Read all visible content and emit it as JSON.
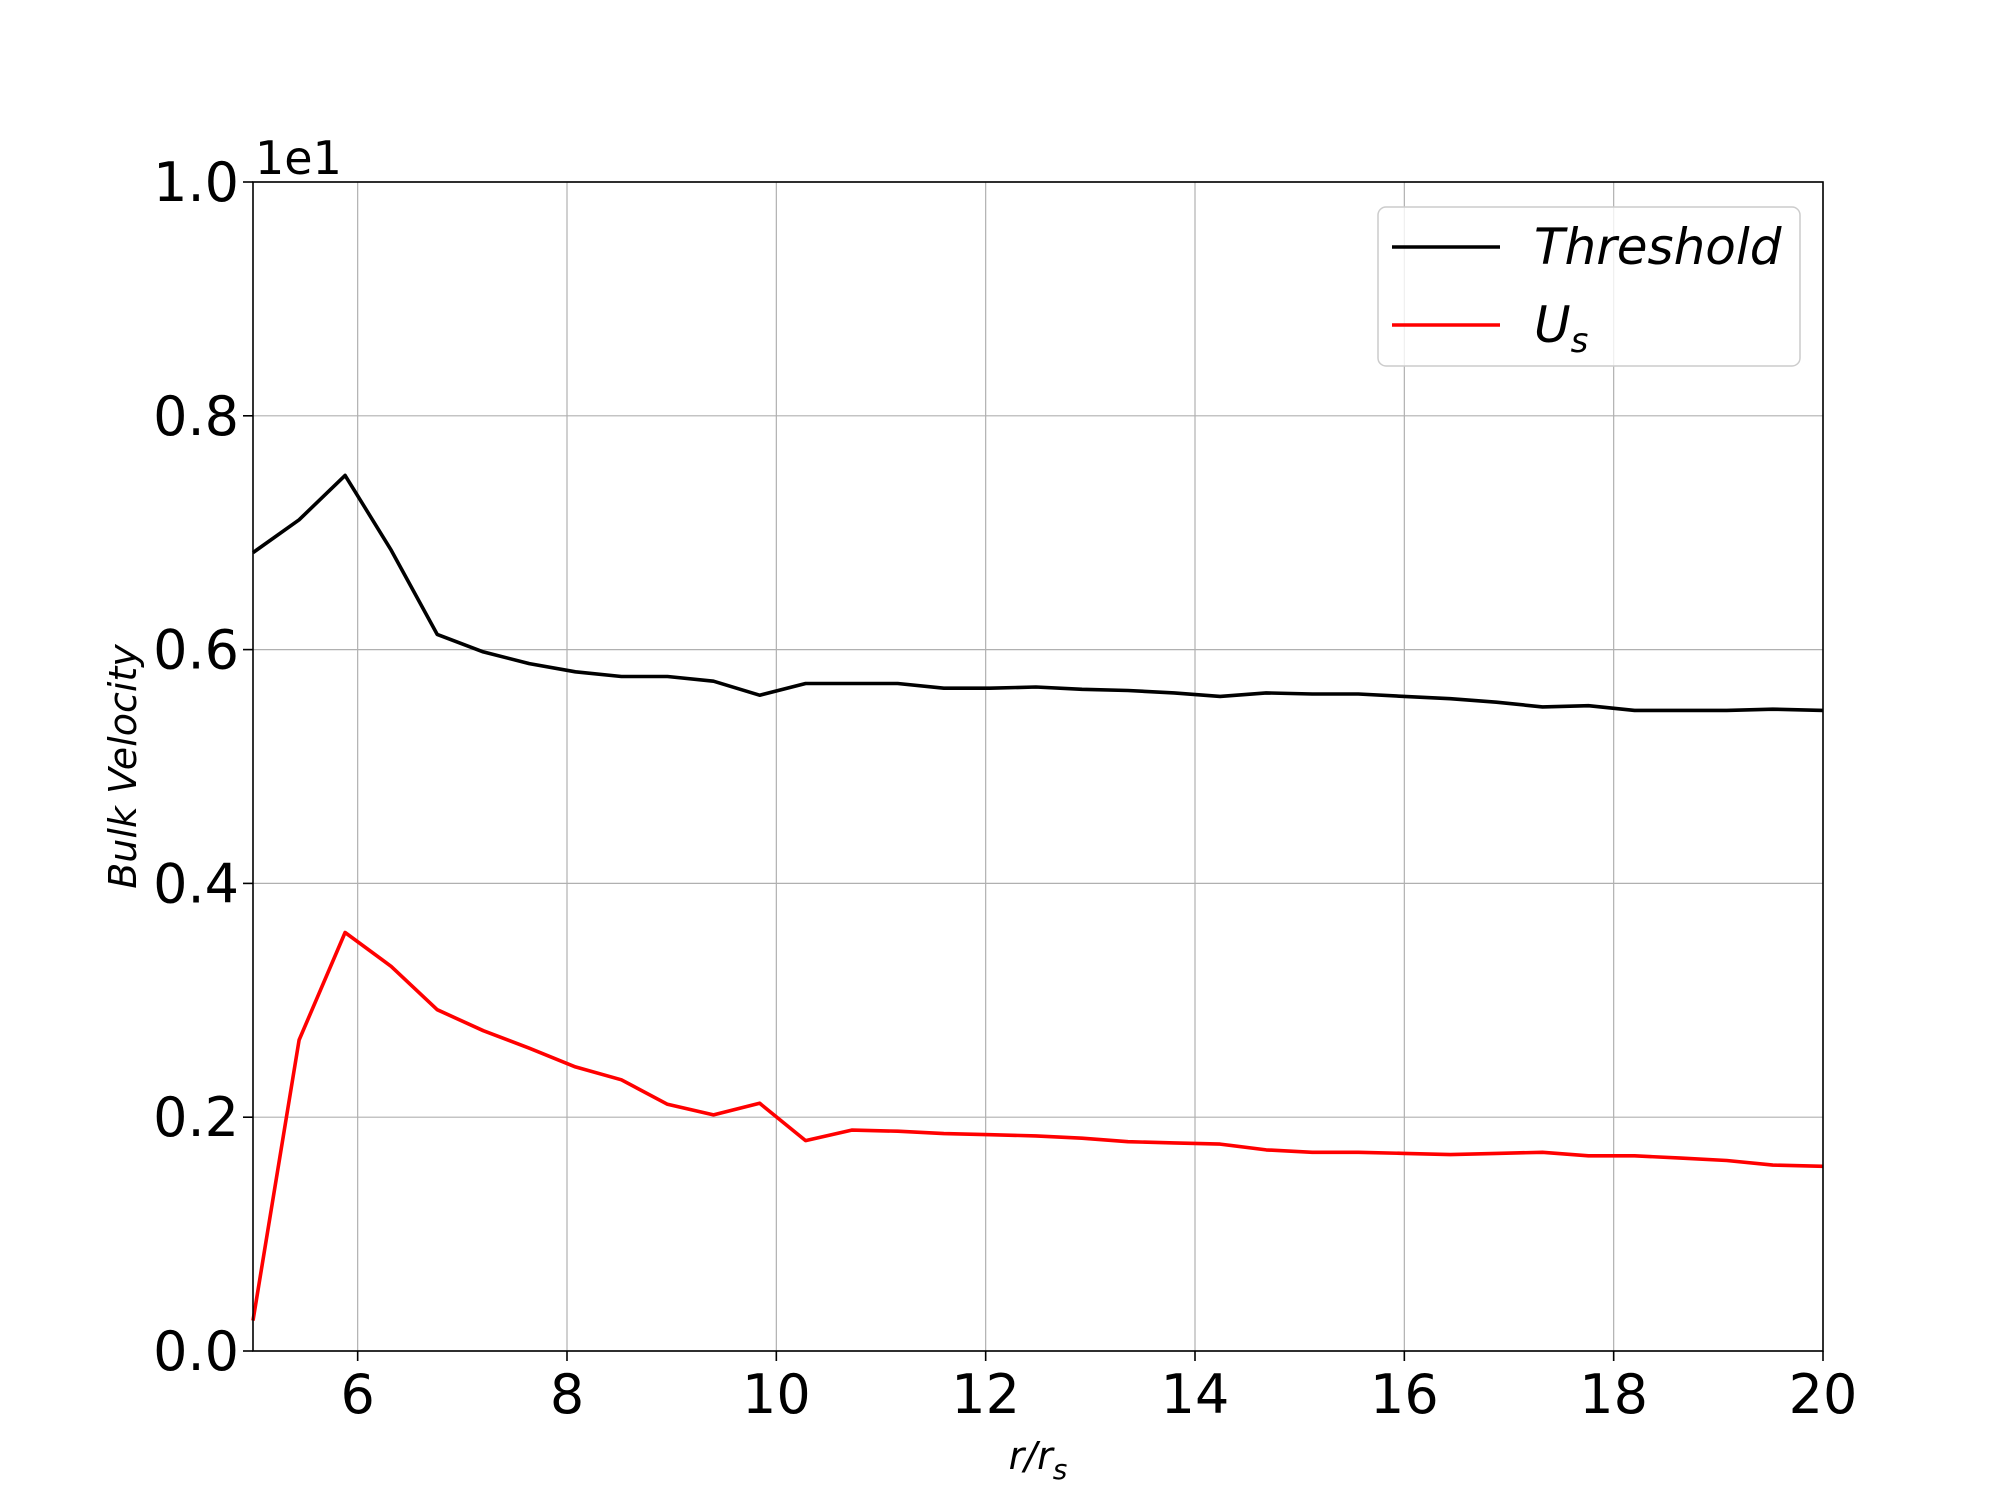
{
  "chart_data": {
    "type": "line",
    "xlabel_main": "r/r",
    "xlabel_sub": "s",
    "ylabel": "Bulk Velocity",
    "offset_text": "1e1",
    "xlim": [
      5,
      20
    ],
    "ylim": [
      0,
      1.0
    ],
    "xticks": [
      6,
      8,
      10,
      12,
      14,
      16,
      18,
      20
    ],
    "xtick_labels": [
      "6",
      "8",
      "10",
      "12",
      "14",
      "16",
      "18",
      "20"
    ],
    "yticks": [
      0.0,
      0.2,
      0.4,
      0.6,
      0.8,
      1.0
    ],
    "ytick_labels": [
      "0.0",
      "0.2",
      "0.4",
      "0.6",
      "0.8",
      "1.0"
    ],
    "grid": true,
    "legend_position": "top-right",
    "x": [
      5.0,
      5.44,
      5.88,
      6.32,
      6.76,
      7.2,
      7.64,
      8.08,
      8.52,
      8.96,
      9.4,
      9.84,
      10.28,
      10.72,
      11.16,
      11.6,
      12.04,
      12.48,
      12.92,
      13.36,
      13.8,
      14.24,
      14.68,
      15.12,
      15.56,
      16.0,
      16.44,
      16.88,
      17.32,
      17.76,
      18.2,
      18.64,
      19.08,
      19.52,
      20.0
    ],
    "series": [
      {
        "name_main": "Threshold",
        "name_sub": "",
        "color": "#000000",
        "values": [
          0.683,
          0.711,
          0.749,
          0.685,
          0.613,
          0.598,
          0.588,
          0.581,
          0.577,
          0.577,
          0.573,
          0.561,
          0.571,
          0.571,
          0.571,
          0.567,
          0.567,
          0.568,
          0.566,
          0.565,
          0.563,
          0.56,
          0.563,
          0.562,
          0.562,
          0.56,
          0.558,
          0.555,
          0.551,
          0.552,
          0.548,
          0.548,
          0.548,
          0.549,
          0.548
        ]
      },
      {
        "name_main": "U",
        "name_sub": "s",
        "color": "#ff0000",
        "values": [
          0.026,
          0.266,
          0.358,
          0.329,
          0.292,
          0.274,
          0.259,
          0.243,
          0.232,
          0.211,
          0.202,
          0.212,
          0.18,
          0.189,
          0.188,
          0.186,
          0.185,
          0.184,
          0.182,
          0.179,
          0.178,
          0.177,
          0.172,
          0.17,
          0.17,
          0.169,
          0.168,
          0.169,
          0.17,
          0.167,
          0.167,
          0.165,
          0.163,
          0.159,
          0.158
        ]
      }
    ]
  }
}
